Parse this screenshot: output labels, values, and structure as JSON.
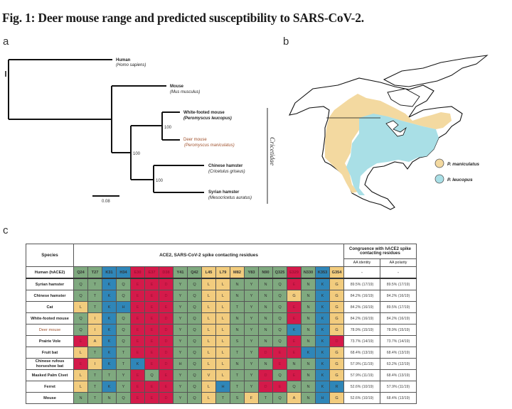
{
  "figure": {
    "title": "Fig. 1: Deer mouse range and predicted susceptibility to SARS-CoV-2.",
    "panels": {
      "a": "a",
      "b": "b",
      "c": "c"
    }
  },
  "tree": {
    "taxa": [
      {
        "common": "Human",
        "latin": "(Homo sapiens)",
        "highlight": false
      },
      {
        "common": "Mouse",
        "latin": "(Mus musculus)",
        "highlight": false
      },
      {
        "common": "White-footed mouse",
        "latin": "(Peromyscus leucopus)",
        "highlight": false
      },
      {
        "common": "Deer mouse",
        "latin": "(Peromyscus maniculatus)",
        "highlight": true
      },
      {
        "common": "Chinese hamster",
        "latin": "(Cricetulus griseus)",
        "highlight": false
      },
      {
        "common": "Syrian hamster",
        "latin": "(Mesocricetus auratus)",
        "highlight": false
      }
    ],
    "bootstrap": [
      "100",
      "100",
      "100"
    ],
    "clade_label": "Cricetidae",
    "scale_label": "0.08",
    "highlight_color": "#a0522d"
  },
  "map": {
    "legend": [
      {
        "label": "P. maniculatus",
        "color": "#f3d9a0"
      },
      {
        "label": "P. leucopus",
        "color": "#a9dfe6"
      }
    ]
  },
  "table": {
    "species_header": "Species",
    "residues_header": "ACE2, SARS-CoV-2 spike contacting residues",
    "congruence_header": "Congruence with hACE2 spike contacting residues",
    "identity_header": "AA identity",
    "polarity_header": "AA polarity",
    "colors": {
      "g": "#7fa97f",
      "y": "#f2cc7e",
      "b": "#2f86b8",
      "r": "#d41a4a"
    },
    "human": {
      "label": "Human (hACE2)",
      "residues": [
        "Q24",
        "T27",
        "K31",
        "H34",
        "E30",
        "E37",
        "D38",
        "Y41",
        "Q42",
        "L45",
        "L79",
        "M82",
        "Y83",
        "N90",
        "Q325",
        "E329",
        "N330",
        "K353",
        "G354"
      ],
      "classes": [
        "g",
        "g",
        "b",
        "b",
        "r",
        "r",
        "r",
        "g",
        "g",
        "y",
        "y",
        "y",
        "g",
        "g",
        "g",
        "r",
        "g",
        "b",
        "y"
      ],
      "identity": "-",
      "polarity": "-"
    },
    "rows": [
      {
        "species": "Syrian hamster",
        "residues": [
          "Q",
          "T",
          "K",
          "Q",
          "E",
          "E",
          "D",
          "Y",
          "Q",
          "L",
          "L",
          "N",
          "Y",
          "N",
          "Q",
          "E",
          "N",
          "K",
          "G"
        ],
        "classes": [
          "g",
          "g",
          "b",
          "g",
          "r",
          "r",
          "r",
          "g",
          "g",
          "y",
          "y",
          "g",
          "g",
          "g",
          "g",
          "r",
          "g",
          "b",
          "y"
        ],
        "identity": "89.5% (17/19)",
        "polarity": "89.5% (17/19)"
      },
      {
        "species": "Chinese hamster",
        "residues": [
          "Q",
          "T",
          "K",
          "Q",
          "E",
          "E",
          "D",
          "Y",
          "Q",
          "L",
          "L",
          "N",
          "Y",
          "N",
          "Q",
          "G",
          "N",
          "K",
          "G"
        ],
        "classes": [
          "g",
          "g",
          "b",
          "g",
          "r",
          "r",
          "r",
          "g",
          "g",
          "y",
          "y",
          "g",
          "g",
          "g",
          "g",
          "y",
          "g",
          "b",
          "y"
        ],
        "identity": "84.2% (16/19)",
        "polarity": "84.2% (16/19)"
      },
      {
        "species": "Cat",
        "residues": [
          "L",
          "T",
          "K",
          "H",
          "E",
          "E",
          "E",
          "Y",
          "Q",
          "L",
          "L",
          "T",
          "Y",
          "N",
          "Q",
          "E",
          "N",
          "K",
          "G"
        ],
        "classes": [
          "y",
          "g",
          "b",
          "b",
          "r",
          "r",
          "r",
          "g",
          "g",
          "y",
          "y",
          "g",
          "g",
          "g",
          "g",
          "r",
          "g",
          "b",
          "y"
        ],
        "identity": "84.2% (16/19)",
        "polarity": "89.5% (17/19)"
      },
      {
        "species": "White-footed mouse",
        "residues": [
          "Q",
          "I",
          "K",
          "Q",
          "E",
          "E",
          "D",
          "Y",
          "Q",
          "L",
          "L",
          "N",
          "Y",
          "N",
          "Q",
          "E",
          "N",
          "K",
          "G"
        ],
        "classes": [
          "g",
          "y",
          "b",
          "g",
          "r",
          "r",
          "r",
          "g",
          "g",
          "y",
          "y",
          "g",
          "g",
          "g",
          "g",
          "r",
          "g",
          "b",
          "y"
        ],
        "identity": "84.2% (16/19)",
        "polarity": "84.2% (16/19)"
      },
      {
        "species": "Deer mouse",
        "highlight": true,
        "residues": [
          "Q",
          "I",
          "K",
          "Q",
          "E",
          "E",
          "D",
          "Y",
          "Q",
          "L",
          "L",
          "N",
          "Y",
          "N",
          "Q",
          "K",
          "N",
          "K",
          "G"
        ],
        "classes": [
          "g",
          "y",
          "b",
          "g",
          "r",
          "r",
          "r",
          "g",
          "g",
          "y",
          "y",
          "g",
          "g",
          "g",
          "g",
          "b",
          "g",
          "b",
          "y"
        ],
        "identity": "78.9% (15/19)",
        "polarity": "78.9% (15/19)"
      },
      {
        "species": "Prairie Vole",
        "residues": [
          "E",
          "A",
          "K",
          "Q",
          "E",
          "E",
          "D",
          "Y",
          "Q",
          "L",
          "L",
          "S",
          "Y",
          "N",
          "Q",
          "E",
          "N",
          "K",
          "D"
        ],
        "classes": [
          "r",
          "y",
          "b",
          "g",
          "r",
          "r",
          "r",
          "g",
          "g",
          "y",
          "y",
          "g",
          "g",
          "g",
          "g",
          "r",
          "g",
          "b",
          "r"
        ],
        "identity": "73.7% (14/19)",
        "polarity": "73.7% (14/19)"
      },
      {
        "species": "Fruit bat",
        "residues": [
          "L",
          "T",
          "K",
          "T",
          "E",
          "E",
          "D",
          "Y",
          "Q",
          "L",
          "L",
          "T",
          "Y",
          "D",
          "E",
          "E",
          "K",
          "K",
          "G"
        ],
        "classes": [
          "y",
          "g",
          "b",
          "g",
          "r",
          "r",
          "r",
          "g",
          "g",
          "y",
          "y",
          "g",
          "g",
          "r",
          "r",
          "r",
          "b",
          "b",
          "y"
        ],
        "identity": "68.4% (13/19)",
        "polarity": "68.4% (13/19)"
      },
      {
        "species": "Chinese rufous horseshoe bat",
        "residues": [
          "E",
          "I",
          "K",
          "T",
          "K",
          "E",
          "D",
          "H",
          "Q",
          "L",
          "L",
          "N",
          "Y",
          "N",
          "E",
          "N",
          "N",
          "K",
          "G"
        ],
        "classes": [
          "r",
          "y",
          "b",
          "g",
          "b",
          "r",
          "r",
          "g",
          "g",
          "y",
          "y",
          "g",
          "g",
          "g",
          "r",
          "g",
          "g",
          "b",
          "y"
        ],
        "identity": "57.9% (11/19)",
        "polarity": "63.2% (12/19)"
      },
      {
        "species": "Masked Palm Civet",
        "residues": [
          "L",
          "T",
          "T",
          "Y",
          "E",
          "Q",
          "E",
          "Y",
          "Q",
          "V",
          "L",
          "T",
          "Y",
          "D",
          "Q",
          "E",
          "N",
          "K",
          "G"
        ],
        "classes": [
          "y",
          "g",
          "g",
          "g",
          "r",
          "g",
          "r",
          "g",
          "g",
          "y",
          "y",
          "g",
          "g",
          "r",
          "g",
          "r",
          "g",
          "b",
          "y"
        ],
        "identity": "57.9% (11/19)",
        "polarity": "68.4% (13/19)"
      },
      {
        "species": "Ferret",
        "residues": [
          "L",
          "T",
          "K",
          "Y",
          "E",
          "E",
          "E",
          "Y",
          "Q",
          "L",
          "H",
          "T",
          "Y",
          "D",
          "E",
          "Q",
          "N",
          "K",
          "R"
        ],
        "classes": [
          "y",
          "g",
          "b",
          "g",
          "r",
          "r",
          "r",
          "g",
          "g",
          "y",
          "b",
          "g",
          "g",
          "r",
          "r",
          "g",
          "g",
          "b",
          "b"
        ],
        "identity": "52.6% (10/19)",
        "polarity": "57.9% (11/19)"
      },
      {
        "species": "Mouse",
        "residues": [
          "N",
          "T",
          "N",
          "Q",
          "E",
          "E",
          "D",
          "Y",
          "Q",
          "L",
          "T",
          "S",
          "F",
          "T",
          "Q",
          "A",
          "N",
          "H",
          "G"
        ],
        "classes": [
          "g",
          "g",
          "g",
          "g",
          "r",
          "r",
          "r",
          "g",
          "g",
          "y",
          "g",
          "g",
          "y",
          "g",
          "g",
          "y",
          "g",
          "b",
          "y"
        ],
        "identity": "52.6% (10/19)",
        "polarity": "68.4% (13/19)"
      }
    ]
  }
}
